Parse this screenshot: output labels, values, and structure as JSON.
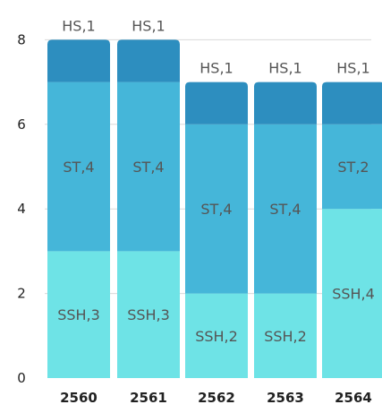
{
  "chart_data": {
    "type": "bar",
    "stacked": true,
    "categories": [
      "2560",
      "2561",
      "2562",
      "2563",
      "2564"
    ],
    "series": [
      {
        "key": "SSH",
        "values": [
          3,
          3,
          2,
          2,
          4
        ],
        "labels": [
          "SSH,3",
          "SSH,3",
          "SSH,2",
          "SSH,2",
          "SSH,4"
        ],
        "color": "#6ee3e6"
      },
      {
        "key": "ST",
        "values": [
          4,
          4,
          4,
          4,
          2
        ],
        "labels": [
          "ST,4",
          "ST,4",
          "ST,4",
          "ST,4",
          "ST,2"
        ],
        "color": "#45b6d9"
      },
      {
        "key": "HS",
        "values": [
          1,
          1,
          1,
          1,
          1
        ],
        "labels": [
          "HS,1",
          "HS,1",
          "HS,1",
          "HS,1",
          "HS,1"
        ],
        "color": "#2d8ebf"
      }
    ],
    "yticks": [
      "0",
      "2",
      "4",
      "6",
      "8"
    ],
    "ylim": [
      0,
      8
    ],
    "grid": true,
    "legend": "none"
  }
}
